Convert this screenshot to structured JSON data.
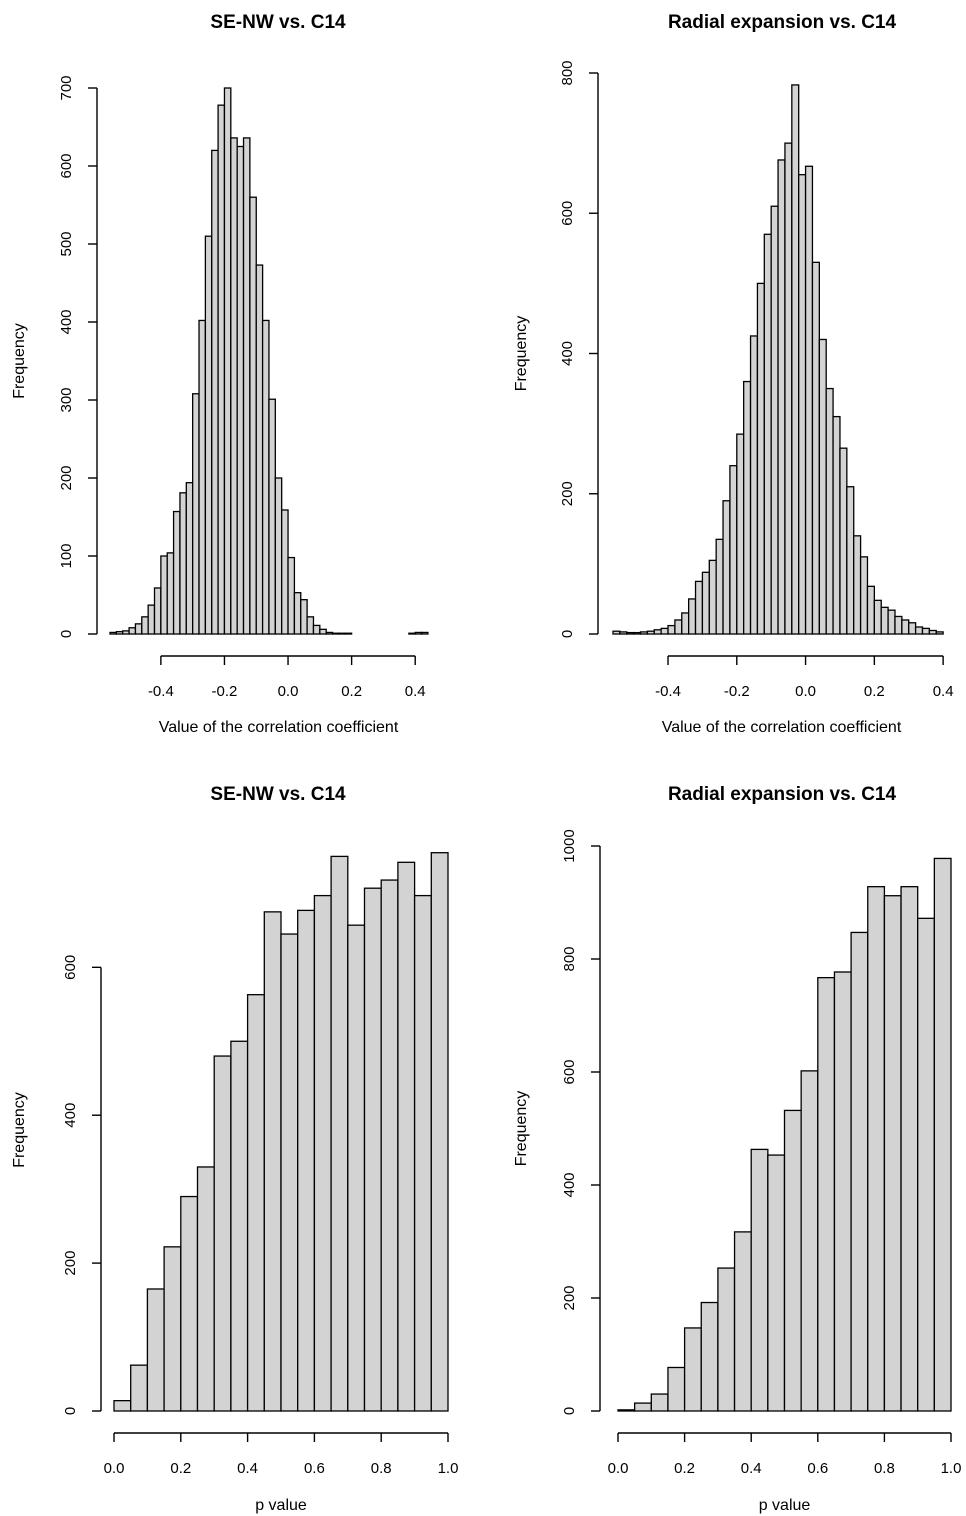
{
  "chart_data": [
    {
      "type": "bar",
      "title": "SE-NW vs. C14",
      "xlabel": "Value of the correlation coefficient",
      "ylabel": "Frequency",
      "x_ticks": [
        -0.4,
        -0.2,
        0.0,
        0.2,
        0.4
      ],
      "x_tick_labels": [
        "-0.4",
        "-0.2",
        "0.0",
        "0.2",
        "0.4"
      ],
      "y_ticks": [
        0,
        100,
        200,
        300,
        400,
        500,
        600,
        700
      ],
      "y_tick_labels": [
        "0",
        "100",
        "200",
        "300",
        "400",
        "500",
        "600",
        "700"
      ],
      "xlim": [
        -0.56,
        0.5
      ],
      "ylim": [
        0,
        700
      ],
      "bin_start": -0.56,
      "bin_width": 0.02,
      "values": [
        2,
        3,
        4,
        8,
        13,
        22,
        37,
        59,
        100,
        104,
        157,
        181,
        194,
        308,
        402,
        510,
        620,
        678,
        700,
        636,
        625,
        636,
        560,
        473,
        402,
        301,
        200,
        159,
        98,
        53,
        44,
        22,
        11,
        6,
        2,
        1,
        1,
        1,
        0,
        0,
        0,
        0,
        0,
        0,
        0,
        0,
        0,
        1,
        2,
        2
      ]
    },
    {
      "type": "bar",
      "title": "Radial expansion vs. C14",
      "xlabel": "Value of the correlation coefficient",
      "ylabel": "Frequency",
      "x_ticks": [
        -0.4,
        -0.2,
        0.0,
        0.2,
        0.4
      ],
      "x_tick_labels": [
        "-0.4",
        "-0.2",
        "0.0",
        "0.2",
        "0.4"
      ],
      "y_ticks": [
        0,
        200,
        400,
        600,
        800
      ],
      "y_tick_labels": [
        "0",
        "200",
        "400",
        "600",
        "800"
      ],
      "xlim": [
        -0.56,
        0.42
      ],
      "ylim": [
        0,
        800
      ],
      "bin_start": -0.56,
      "bin_width": 0.02,
      "values": [
        4,
        3,
        2,
        2,
        3,
        4,
        6,
        8,
        12,
        20,
        30,
        50,
        75,
        88,
        105,
        135,
        190,
        240,
        285,
        360,
        425,
        500,
        570,
        610,
        676,
        700,
        783,
        655,
        667,
        530,
        420,
        350,
        310,
        265,
        210,
        140,
        110,
        68,
        48,
        38,
        34,
        25,
        20,
        16,
        10,
        8,
        5,
        3
      ]
    },
    {
      "type": "bar",
      "title": "SE-NW vs. C14",
      "xlabel": "p value",
      "ylabel": "Frequency",
      "x_ticks": [
        0.0,
        0.2,
        0.4,
        0.6,
        0.8,
        1.0
      ],
      "x_tick_labels": [
        "0.0",
        "0.2",
        "0.4",
        "0.6",
        "0.8",
        "1.0"
      ],
      "y_ticks": [
        0,
        200,
        400,
        600
      ],
      "y_tick_labels": [
        "0",
        "200",
        "400",
        "600"
      ],
      "xlim": [
        0,
        1
      ],
      "ylim": [
        0,
        760
      ],
      "bin_start": 0,
      "bin_width": 0.05,
      "values": [
        14,
        62,
        165,
        222,
        290,
        330,
        480,
        500,
        563,
        675,
        645,
        677,
        697,
        750,
        657,
        707,
        718,
        742,
        697,
        755
      ]
    },
    {
      "type": "bar",
      "title": "Radial expansion vs. C14",
      "xlabel": "p value",
      "ylabel": "Frequency",
      "x_ticks": [
        0.0,
        0.2,
        0.4,
        0.6,
        0.8,
        1.0
      ],
      "x_tick_labels": [
        "0.0",
        "0.2",
        "0.4",
        "0.6",
        "0.8",
        "1.0"
      ],
      "y_ticks": [
        0,
        200,
        400,
        600,
        800,
        1000
      ],
      "y_tick_labels": [
        "0",
        "200",
        "400",
        "600",
        "800",
        "1000"
      ],
      "xlim": [
        0,
        1
      ],
      "ylim": [
        0,
        1000
      ],
      "bin_start": 0,
      "bin_width": 0.05,
      "values": [
        2,
        14,
        30,
        77,
        147,
        192,
        253,
        317,
        463,
        453,
        532,
        602,
        767,
        777,
        847,
        928,
        912,
        928,
        872,
        978
      ]
    }
  ]
}
